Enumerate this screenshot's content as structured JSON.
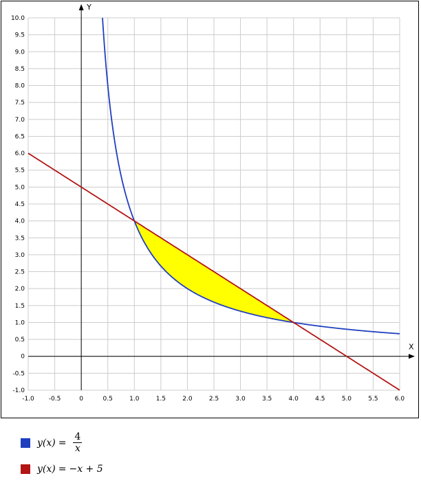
{
  "chart_data": {
    "type": "line",
    "xlabel": "X",
    "ylabel": "Y",
    "xlim": [
      -1.0,
      6.0
    ],
    "ylim": [
      -1.0,
      10.0
    ],
    "x_ticks": [
      -1.0,
      -0.5,
      0,
      0.5,
      1.0,
      1.5,
      2.0,
      2.5,
      3.0,
      3.5,
      4.0,
      4.5,
      5.0,
      5.5,
      6.0
    ],
    "x_tick_labels": [
      "-1.0",
      "-0.5",
      "0",
      "0.5",
      "1.0",
      "1.5",
      "2.0",
      "2.5",
      "3.0",
      "3.5",
      "4.0",
      "4.5",
      "5.0",
      "5.5",
      "6.0"
    ],
    "y_ticks": [
      -1.0,
      -0.5,
      0,
      0.5,
      1.0,
      1.5,
      2.0,
      2.5,
      3.0,
      3.5,
      4.0,
      4.5,
      5.0,
      5.5,
      6.0,
      6.5,
      7.0,
      7.5,
      8.0,
      8.5,
      9.0,
      9.5,
      10.0
    ],
    "y_tick_labels": [
      "-1.0",
      "-0.5",
      "0",
      "0.5",
      "1.0",
      "1.5",
      "2.0",
      "2.5",
      "3.0",
      "3.5",
      "4.0",
      "4.5",
      "5.0",
      "5.5",
      "6.0",
      "6.5",
      "7.0",
      "7.5",
      "8.0",
      "8.5",
      "9.0",
      "9.5",
      "10.0"
    ],
    "grid": true,
    "series": [
      {
        "name": "y(x) = 4/x",
        "formula": "4/x",
        "color": "#1f3fbf",
        "x_range": [
          0.4,
          6.0
        ]
      },
      {
        "name": "y(x) = -x + 5",
        "formula": "-x+5",
        "color": "#b31515",
        "x_range": [
          -1.0,
          6.0
        ]
      }
    ],
    "shaded_region": {
      "between": [
        "-x+5",
        "4/x"
      ],
      "x_range": [
        1.0,
        4.0
      ],
      "color": "#ffff00"
    }
  },
  "legend": {
    "item1": {
      "color": "#1f3fbf",
      "lhs": "y(x)",
      "eq": "=",
      "num": "4",
      "den": "x"
    },
    "item2": {
      "color": "#b31515",
      "lhs": "y(x)",
      "eq": "=",
      "rhs": "−x + 5"
    }
  }
}
